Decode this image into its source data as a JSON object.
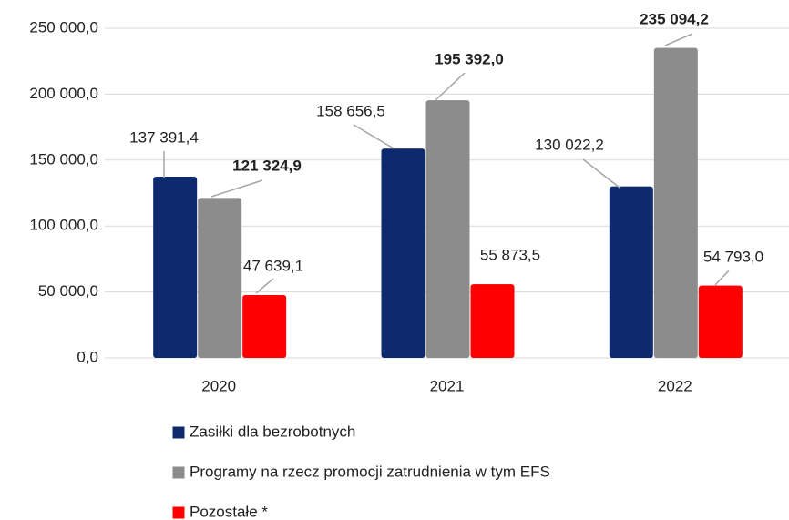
{
  "chart_data": {
    "type": "bar",
    "categories": [
      "2020",
      "2021",
      "2022"
    ],
    "series": [
      {
        "name": "Zasiłki dla bezrobotnych",
        "color": "#0d2a6e",
        "values": [
          137391.4,
          158656.5,
          130022.2
        ],
        "value_labels": [
          "137 391,4",
          "158 656,5",
          "130 022,2"
        ]
      },
      {
        "name": "Programy na rzecz promocji zatrudnienia w tym EFS",
        "color": "#8c8c8c",
        "values": [
          121324.9,
          195392.0,
          235094.2
        ],
        "value_labels": [
          "121 324,9",
          "195 392,0",
          "235 094,2"
        ],
        "bold_value_labels": true
      },
      {
        "name": "Pozostałe *",
        "color": "#ff0000",
        "values": [
          47639.1,
          55873.5,
          54793.0
        ],
        "value_labels": [
          "47 639,1",
          "55 873,5",
          "54 793,0"
        ]
      }
    ],
    "ylim": [
      0,
      250000
    ],
    "yticks": [
      {
        "value": 0,
        "label": "0,0"
      },
      {
        "value": 50000,
        "label": "50 000,0"
      },
      {
        "value": 100000,
        "label": "100 000,0"
      },
      {
        "value": 150000,
        "label": "150 000,0"
      },
      {
        "value": 200000,
        "label": "200 000,0"
      },
      {
        "value": 250000,
        "label": "250 000,0"
      }
    ],
    "grid": true
  }
}
